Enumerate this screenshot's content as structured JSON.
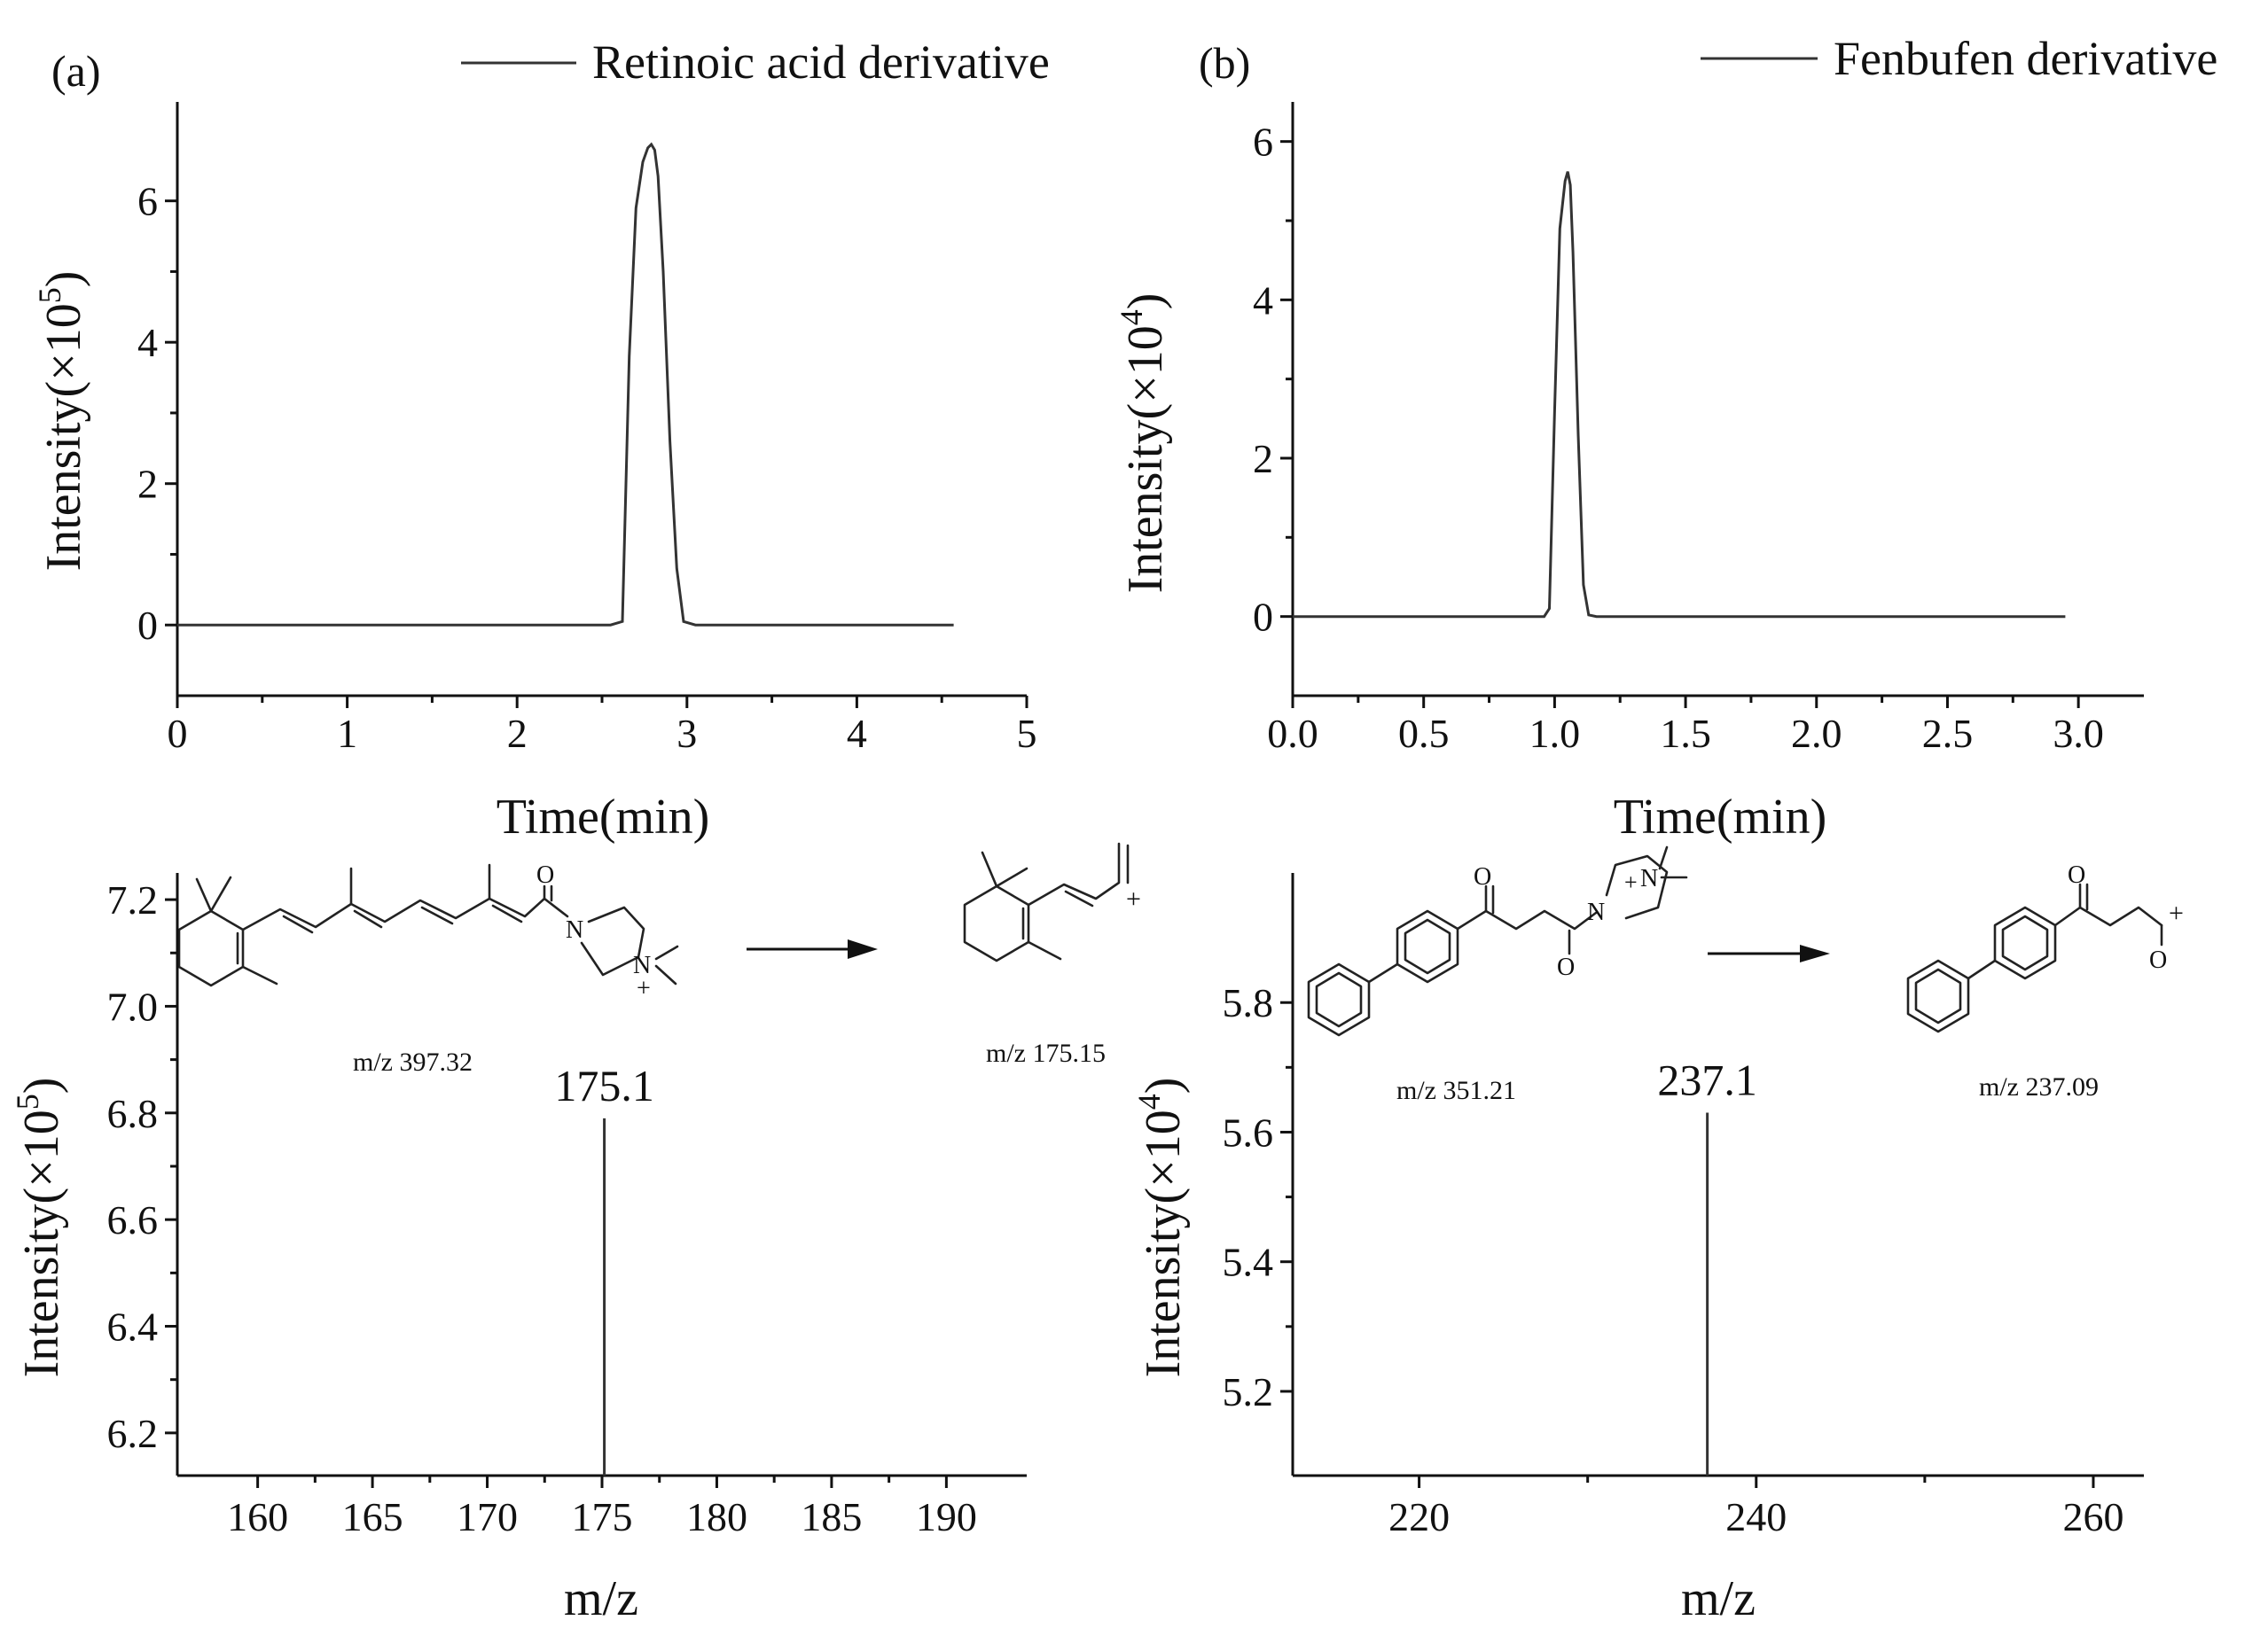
{
  "chart_data": [
    {
      "id": "a",
      "panel_label": "(a)",
      "type": "line",
      "legend": "Retinoic acid derivative",
      "legend_position": "top-right",
      "xlabel": "Time(min)",
      "ylabel": "Intensity(×10",
      "ylabel_exp": "5",
      "ylabel_close": ")",
      "xlim": [
        0,
        5
      ],
      "ylim": [
        -1,
        7.4
      ],
      "xticks": [
        0,
        1,
        2,
        3,
        4,
        5
      ],
      "xtick_labels": [
        "0",
        "1",
        "2",
        "3",
        "4",
        "5"
      ],
      "yticks": [
        0,
        2,
        4,
        6
      ],
      "ytick_labels": [
        "0",
        "2",
        "4",
        "6"
      ],
      "series": [
        {
          "name": "Retinoic acid derivative",
          "x": [
            0,
            2.55,
            2.62,
            2.66,
            2.7,
            2.74,
            2.77,
            2.79,
            2.81,
            2.83,
            2.86,
            2.9,
            2.94,
            2.98,
            3.05,
            4.57
          ],
          "y": [
            0,
            0,
            0.05,
            3.8,
            5.9,
            6.55,
            6.75,
            6.8,
            6.72,
            6.35,
            5.0,
            2.6,
            0.8,
            0.05,
            0,
            0
          ]
        }
      ]
    },
    {
      "id": "b",
      "panel_label": "(b)",
      "type": "line",
      "legend": "Fenbufen derivative",
      "legend_position": "top-right",
      "xlabel": "Time(min)",
      "ylabel": "Intensity(×10",
      "ylabel_exp": "4",
      "ylabel_close": ")",
      "xlim": [
        0,
        3.25
      ],
      "ylim": [
        -1,
        6.5
      ],
      "xticks": [
        0,
        0.5,
        1,
        1.5,
        2,
        2.5,
        3
      ],
      "xtick_labels": [
        "0.0",
        "0.5",
        "1.0",
        "1.5",
        "2.0",
        "2.5",
        "3.0"
      ],
      "yticks": [
        0,
        2,
        4,
        6
      ],
      "ytick_labels": [
        "0",
        "2",
        "4",
        "6"
      ],
      "series": [
        {
          "name": "Fenbufen derivative",
          "x": [
            0,
            0.96,
            0.98,
            1.0,
            1.02,
            1.04,
            1.05,
            1.06,
            1.07,
            1.09,
            1.11,
            1.13,
            1.16,
            2.95
          ],
          "y": [
            0,
            0,
            0.1,
            2.6,
            4.9,
            5.5,
            5.62,
            5.45,
            4.6,
            2.3,
            0.4,
            0.02,
            0,
            0
          ]
        }
      ]
    },
    {
      "id": "c",
      "type": "bar",
      "xlabel": "m/z",
      "ylabel": "Intensity(×10",
      "ylabel_exp": "5",
      "ylabel_close": ")",
      "xlim": [
        156.5,
        193.5
      ],
      "ylim": [
        6.12,
        7.25
      ],
      "xticks": [
        160,
        165,
        170,
        175,
        180,
        185,
        190
      ],
      "xtick_labels": [
        "160",
        "165",
        "170",
        "175",
        "180",
        "185",
        "190"
      ],
      "yticks": [
        6.2,
        6.4,
        6.6,
        6.8,
        7.0,
        7.2
      ],
      "ytick_labels": [
        "6.2",
        "6.4",
        "6.6",
        "6.8",
        "7.0",
        "7.2"
      ],
      "peaks": [
        {
          "mz": 175.1,
          "intensity": 6.79,
          "label": "175.1"
        }
      ],
      "annotations": {
        "precursor_mz": "m/z 397.32",
        "product_mz": "m/z 175.15"
      }
    },
    {
      "id": "d",
      "type": "bar",
      "xlabel": "m/z",
      "ylabel": "Intensity(×10",
      "ylabel_exp": "4",
      "ylabel_close": ")",
      "xlim": [
        212.5,
        263
      ],
      "ylim": [
        5.07,
        6.0
      ],
      "xticks": [
        220,
        240,
        260
      ],
      "xtick_labels": [
        "220",
        "240",
        "260"
      ],
      "minor_xticks": [
        230,
        250
      ],
      "yticks": [
        5.2,
        5.4,
        5.6,
        5.8
      ],
      "ytick_labels": [
        "5.2",
        "5.4",
        "5.6",
        "5.8"
      ],
      "peaks": [
        {
          "mz": 237.1,
          "intensity": 5.63,
          "label": "237.1"
        }
      ],
      "annotations": {
        "precursor_mz": "m/z 351.21",
        "product_mz": "m/z 237.09"
      }
    }
  ],
  "structures": {
    "charge_symbol": "+",
    "nitrogen": "N",
    "oxygen": "O"
  },
  "colors": {
    "axis": "#111111",
    "trace": "#333333",
    "background": "#ffffff"
  }
}
